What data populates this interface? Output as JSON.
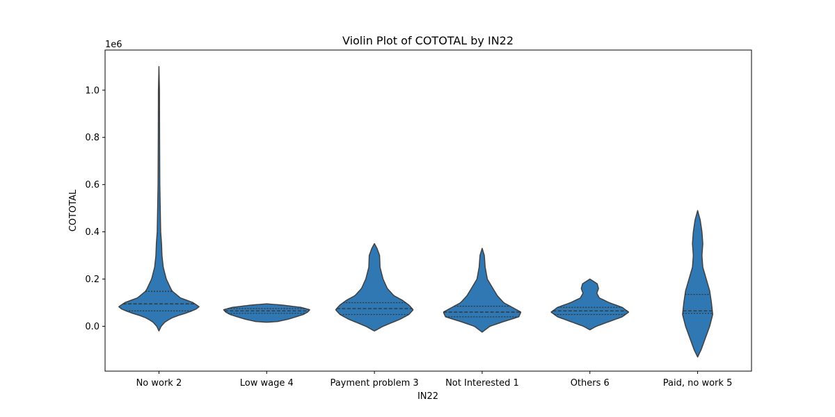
{
  "chart_data": {
    "type": "violin",
    "title": "Violin Plot of COTOTAL by IN22",
    "xlabel": "IN22",
    "ylabel": "COTOTAL",
    "y_offset_label": "1e6",
    "y_scale_factor": 1000000,
    "ylim": [
      -0.19,
      1.17
    ],
    "yticks": [
      0.0,
      0.2,
      0.4,
      0.6,
      0.8,
      1.0
    ],
    "ytick_labels": [
      "0.0",
      "0.2",
      "0.4",
      "0.6",
      "0.8",
      "1.0"
    ],
    "grid": false,
    "color": "#2f78b3",
    "edge_color": "#404040",
    "inner": "quartile",
    "categories": [
      "No work 2",
      "Low wage 4",
      "Payment problem 3",
      "Not Interested 1",
      "Others 6",
      "Paid, no work 5"
    ],
    "violins": [
      {
        "category": "No work 2",
        "min": -0.02,
        "max": 1.1,
        "quartiles": [
          0.065,
          0.095,
          0.148
        ],
        "profile": [
          [
            -0.02,
            0.0
          ],
          [
            0.0,
            0.05
          ],
          [
            0.02,
            0.15
          ],
          [
            0.04,
            0.35
          ],
          [
            0.06,
            0.7
          ],
          [
            0.08,
            0.95
          ],
          [
            0.1,
            0.8
          ],
          [
            0.12,
            0.5
          ],
          [
            0.15,
            0.3
          ],
          [
            0.2,
            0.17
          ],
          [
            0.25,
            0.1
          ],
          [
            0.3,
            0.07
          ],
          [
            0.35,
            0.06
          ],
          [
            0.4,
            0.04
          ],
          [
            0.5,
            0.03
          ],
          [
            0.6,
            0.02
          ],
          [
            0.8,
            0.015
          ],
          [
            1.0,
            0.012
          ],
          [
            1.1,
            0.0
          ]
        ]
      },
      {
        "category": "Low wage 4",
        "min": 0.017,
        "max": 0.095,
        "quartiles": [
          0.055,
          0.065,
          0.075
        ],
        "profile": [
          [
            0.017,
            0.0
          ],
          [
            0.02,
            0.25
          ],
          [
            0.03,
            0.5
          ],
          [
            0.04,
            0.68
          ],
          [
            0.05,
            0.85
          ],
          [
            0.06,
            0.95
          ],
          [
            0.07,
            1.0
          ],
          [
            0.08,
            0.8
          ],
          [
            0.09,
            0.35
          ],
          [
            0.095,
            0.0
          ]
        ]
      },
      {
        "category": "Payment problem 3",
        "min": -0.02,
        "max": 0.35,
        "quartiles": [
          0.05,
          0.075,
          0.1
        ],
        "profile": [
          [
            -0.02,
            0.0
          ],
          [
            0.0,
            0.2
          ],
          [
            0.03,
            0.6
          ],
          [
            0.05,
            0.8
          ],
          [
            0.07,
            0.9
          ],
          [
            0.09,
            0.8
          ],
          [
            0.11,
            0.65
          ],
          [
            0.13,
            0.45
          ],
          [
            0.16,
            0.3
          ],
          [
            0.2,
            0.2
          ],
          [
            0.25,
            0.13
          ],
          [
            0.3,
            0.12
          ],
          [
            0.33,
            0.06
          ],
          [
            0.35,
            0.0
          ]
        ]
      },
      {
        "category": "Not Interested 1",
        "min": -0.025,
        "max": 0.33,
        "quartiles": [
          0.04,
          0.06,
          0.085
        ],
        "profile": [
          [
            -0.025,
            0.0
          ],
          [
            0.0,
            0.18
          ],
          [
            0.02,
            0.5
          ],
          [
            0.04,
            0.85
          ],
          [
            0.06,
            0.9
          ],
          [
            0.08,
            0.7
          ],
          [
            0.1,
            0.5
          ],
          [
            0.13,
            0.35
          ],
          [
            0.16,
            0.25
          ],
          [
            0.2,
            0.12
          ],
          [
            0.25,
            0.07
          ],
          [
            0.3,
            0.05
          ],
          [
            0.33,
            0.0
          ]
        ]
      },
      {
        "category": "Others 6",
        "min": -0.015,
        "max": 0.2,
        "quartiles": [
          0.05,
          0.065,
          0.08
        ],
        "profile": [
          [
            -0.015,
            0.0
          ],
          [
            0.0,
            0.15
          ],
          [
            0.02,
            0.45
          ],
          [
            0.04,
            0.75
          ],
          [
            0.06,
            0.9
          ],
          [
            0.08,
            0.75
          ],
          [
            0.1,
            0.45
          ],
          [
            0.12,
            0.22
          ],
          [
            0.14,
            0.16
          ],
          [
            0.16,
            0.2
          ],
          [
            0.18,
            0.17
          ],
          [
            0.2,
            0.0
          ]
        ]
      },
      {
        "category": "Paid, no work 5",
        "min": -0.13,
        "max": 0.49,
        "quartiles": [
          0.055,
          0.065,
          0.135
        ],
        "profile": [
          [
            -0.13,
            0.0
          ],
          [
            -0.1,
            0.08
          ],
          [
            -0.05,
            0.18
          ],
          [
            0.0,
            0.28
          ],
          [
            0.05,
            0.35
          ],
          [
            0.1,
            0.32
          ],
          [
            0.15,
            0.28
          ],
          [
            0.2,
            0.2
          ],
          [
            0.25,
            0.12
          ],
          [
            0.3,
            0.1
          ],
          [
            0.35,
            0.12
          ],
          [
            0.4,
            0.1
          ],
          [
            0.45,
            0.06
          ],
          [
            0.49,
            0.0
          ]
        ]
      }
    ]
  }
}
